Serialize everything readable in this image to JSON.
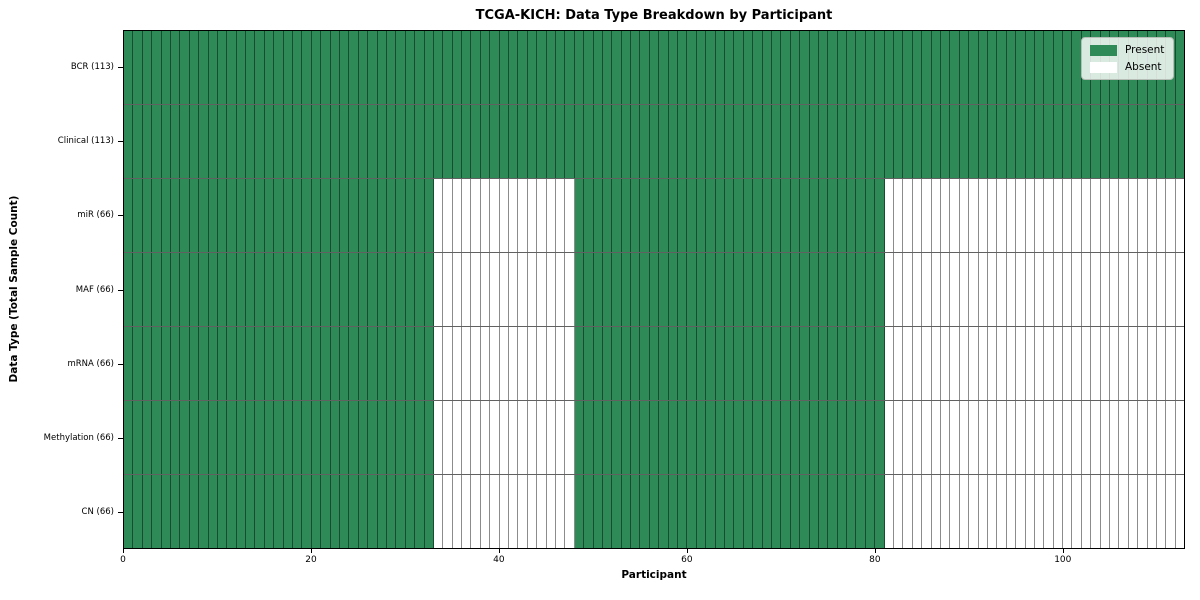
{
  "chart_data": {
    "type": "heatmap",
    "title": "TCGA-KICH: Data Type Breakdown by Participant",
    "xlabel": "Participant",
    "ylabel": "Data Type (Total Sample Count)",
    "n_participants": 113,
    "xlim": [
      0,
      113
    ],
    "x_ticks": [
      0,
      20,
      40,
      60,
      80,
      100
    ],
    "grid": false,
    "rows": [
      {
        "label": "BCR (113)",
        "name": "BCR",
        "total_samples": 113,
        "present_ranges": [
          [
            0,
            113
          ]
        ]
      },
      {
        "label": "Clinical (113)",
        "name": "Clinical",
        "total_samples": 113,
        "present_ranges": [
          [
            0,
            113
          ]
        ]
      },
      {
        "label": "miR (66)",
        "name": "miR",
        "total_samples": 66,
        "present_ranges": [
          [
            0,
            33
          ],
          [
            48,
            81
          ]
        ]
      },
      {
        "label": "MAF (66)",
        "name": "MAF",
        "total_samples": 66,
        "present_ranges": [
          [
            0,
            33
          ],
          [
            48,
            81
          ]
        ]
      },
      {
        "label": "mRNA (66)",
        "name": "mRNA",
        "total_samples": 66,
        "present_ranges": [
          [
            0,
            33
          ],
          [
            48,
            81
          ]
        ]
      },
      {
        "label": "Methylation (66)",
        "name": "Methylation",
        "total_samples": 66,
        "present_ranges": [
          [
            0,
            33
          ],
          [
            48,
            81
          ]
        ]
      },
      {
        "label": "CN (66)",
        "name": "CN",
        "total_samples": 66,
        "present_ranges": [
          [
            0,
            33
          ],
          [
            48,
            81
          ]
        ]
      }
    ],
    "legend": {
      "position": "upper right",
      "entries": [
        {
          "label": "Present",
          "color": "#2e8b57"
        },
        {
          "label": "Absent",
          "color": "#ffffff"
        }
      ]
    },
    "colors": {
      "present": "#2e8b57",
      "absent": "#ffffff",
      "cell_border": "#000000",
      "spine": "#000000"
    }
  }
}
